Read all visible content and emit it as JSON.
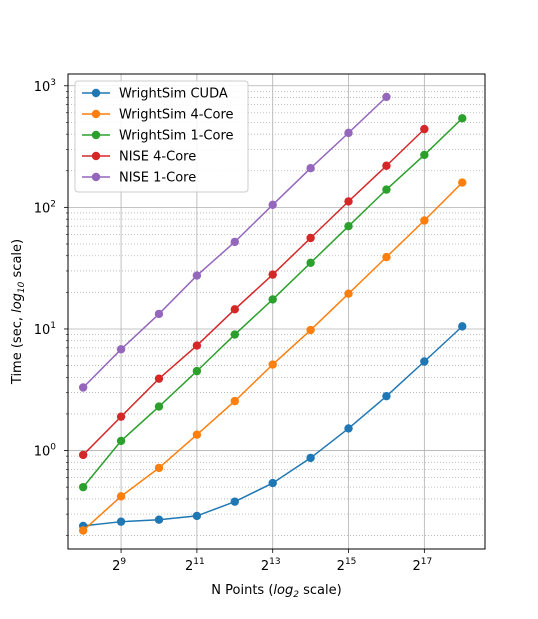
{
  "chart_data": {
    "type": "line",
    "title": "",
    "xlabel": "N Points (log2 scale)",
    "ylabel": "Time (sec, log10 scale)",
    "x_scale": "log2",
    "y_scale": "log10",
    "xlim_exp2": [
      7.6,
      18.6
    ],
    "ylim": [
      0.155,
      1250
    ],
    "x_tick_labels": [
      {
        "exp": 9,
        "base": "2",
        "sup": "9"
      },
      {
        "exp": 11,
        "base": "2",
        "sup": "11"
      },
      {
        "exp": 13,
        "base": "2",
        "sup": "13"
      },
      {
        "exp": 15,
        "base": "2",
        "sup": "15"
      },
      {
        "exp": 17,
        "base": "2",
        "sup": "17"
      }
    ],
    "y_tick_labels": [
      {
        "value": 1,
        "base": "10",
        "sup": "0"
      },
      {
        "value": 10,
        "base": "10",
        "sup": "1"
      },
      {
        "value": 100,
        "base": "10",
        "sup": "2"
      },
      {
        "value": 1000,
        "base": "10",
        "sup": "3"
      }
    ],
    "x_exp": [
      8,
      9,
      10,
      11,
      12,
      13,
      14,
      15,
      16,
      17,
      18
    ],
    "grid": true,
    "legend_position": "top-left",
    "series": [
      {
        "name": "WrightSim CUDA",
        "color": "#1f77b4",
        "values": [
          0.24,
          0.26,
          0.27,
          0.29,
          0.38,
          0.54,
          0.87,
          1.52,
          2.8,
          5.4,
          10.5
        ]
      },
      {
        "name": "WrightSim 4-Core",
        "color": "#ff7f0e",
        "values": [
          0.22,
          0.42,
          0.72,
          1.35,
          2.55,
          5.1,
          9.8,
          19.5,
          39,
          78,
          160
        ]
      },
      {
        "name": "WrightSim 1-Core",
        "color": "#2ca02c",
        "values": [
          0.5,
          1.2,
          2.3,
          4.5,
          9.0,
          17.5,
          35,
          70,
          140,
          270,
          540
        ]
      },
      {
        "name": "NISE 4-Core",
        "color": "#d62728",
        "values": [
          0.92,
          1.9,
          3.9,
          7.3,
          14.5,
          28,
          56,
          112,
          220,
          440,
          null
        ]
      },
      {
        "name": "NISE 1-Core",
        "color": "#9467bd",
        "values": [
          3.3,
          6.8,
          13.3,
          27.5,
          52,
          105,
          210,
          410,
          810,
          null,
          null
        ]
      }
    ]
  }
}
